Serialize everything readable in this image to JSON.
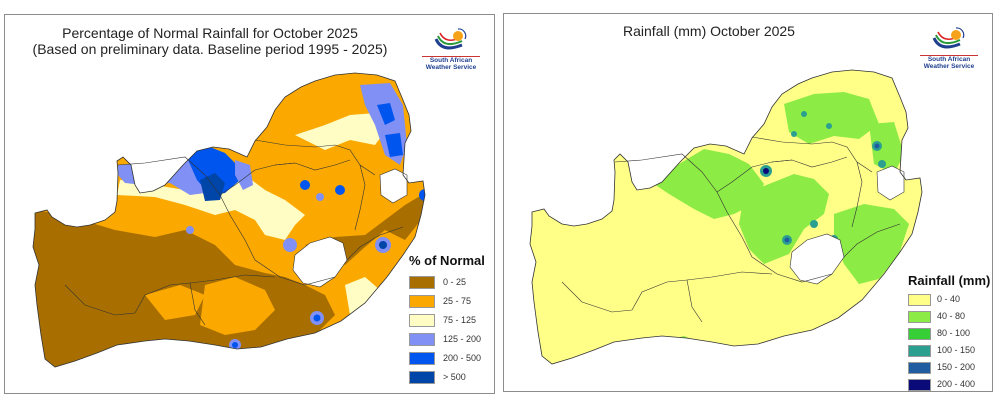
{
  "panels": [
    {
      "title_line1": "Percentage of Normal Rainfall for October 2025",
      "title_line2": "(Based on preliminary data. Baseline period 1995 - 2025)",
      "logo": {
        "icon": "saws-logo-icon",
        "line1": "South African",
        "line2": "Weather Service"
      },
      "legend": {
        "title": "% of Normal",
        "items": [
          {
            "label": "0 - 25",
            "color": "#A86F00"
          },
          {
            "label": "25 - 75",
            "color": "#FBA800"
          },
          {
            "label": "75 - 125",
            "color": "#FFFDC4"
          },
          {
            "label": "125 - 200",
            "color": "#8090F4"
          },
          {
            "label": "200 - 500",
            "color": "#0055EE"
          },
          {
            "label": "> 500",
            "color": "#0045A8"
          }
        ]
      }
    },
    {
      "title_line1": "Rainfall (mm) October 2025",
      "logo": {
        "icon": "saws-logo-icon",
        "line1": "South African",
        "line2": "Weather Service"
      },
      "legend": {
        "title": "Rainfall (mm)",
        "items": [
          {
            "label": "0 - 40",
            "color": "#FFFF88"
          },
          {
            "label": "40 - 80",
            "color": "#8CEB44"
          },
          {
            "label": "80 - 100",
            "color": "#36D036"
          },
          {
            "label": "100 - 150",
            "color": "#2CA090"
          },
          {
            "label": "150 - 200",
            "color": "#1F5DA0"
          },
          {
            "label": "200 - 400",
            "color": "#0A0A78"
          }
        ]
      }
    }
  ]
}
